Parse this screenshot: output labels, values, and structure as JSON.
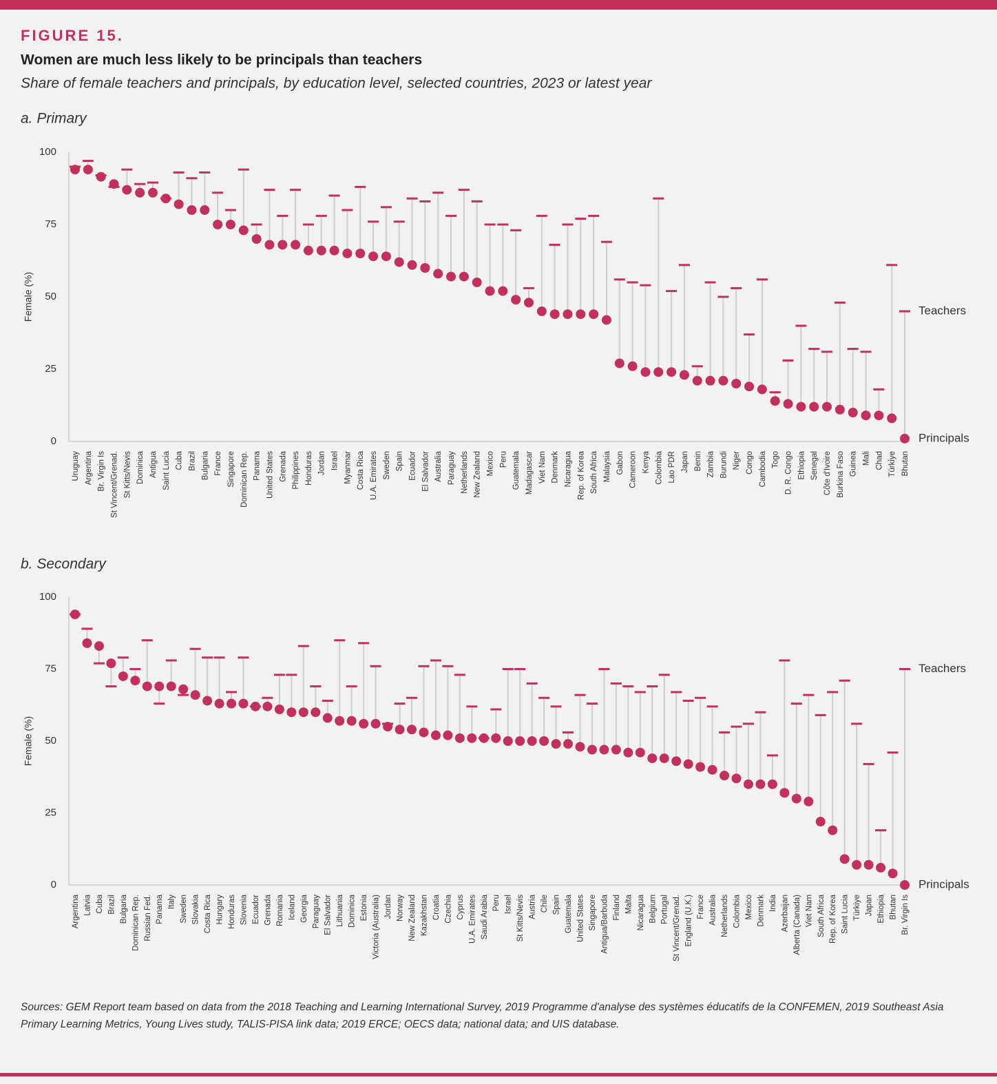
{
  "header": {
    "figure": "FIGURE 15.",
    "title": "Women are much less likely to be principals than teachers",
    "subtitle": "Share of female teachers and principals, by education level, selected countries, 2023 or latest year"
  },
  "source": "Sources: GEM Report team based on data from the 2018 Teaching and Learning International Survey, 2019 Programme d'analyse des systèmes éducatifs de la CONFEMEN, 2019 Southeast Asia Primary Learning Metrics, Young Lives study, TALIS-PISA link data; 2019 ERCE; OECS data; national data; and UIS database.",
  "chart_data": [
    {
      "type": "dumbbell",
      "title": "a. Primary",
      "ylabel": "Female (%)",
      "ylim": [
        0,
        100
      ],
      "yticks": [
        0,
        25,
        50,
        75,
        100
      ],
      "grid": false,
      "stem_color": "#cfcfcf",
      "categories": [
        "Uruguay",
        "Argentina",
        "Br. Virgin Is",
        "St Vincent/Grenad.",
        "St Kitts/Nevis",
        "Dominica",
        "Antigua",
        "Saint Lucia",
        "Cuba",
        "Brazil",
        "Bulgaria",
        "France",
        "Singapore",
        "Dominican Rep.",
        "Panama",
        "United States",
        "Grenada",
        "Philippines",
        "Honduras",
        "Jordan",
        "Israel",
        "Myanmar",
        "Costa Rica",
        "U.A. Emirates",
        "Sweden",
        "Spain",
        "Ecuador",
        "El Salvador",
        "Australia",
        "Paraguay",
        "Netherlands",
        "New Zealand",
        "Mexico",
        "Peru",
        "Guatemala",
        "Madagascar",
        "Viet Nam",
        "Denmark",
        "Nicaragua",
        "Rep. of Korea",
        "South Africa",
        "Malaysia",
        "Gabon",
        "Cameroon",
        "Kenya",
        "Colombia",
        "Lao PDR",
        "Japan",
        "Benin",
        "Zambia",
        "Burundi",
        "Niger",
        "Congo",
        "Cambodia",
        "Togo",
        "D. R. Congo",
        "Ethiopia",
        "Senegal",
        "Côte d'Ivoire",
        "Burkina Faso",
        "Guinea",
        "Mali",
        "Chad",
        "Türkiye",
        "Bhutan"
      ],
      "series": [
        {
          "name": "Teachers",
          "color": "#c2305c",
          "marker": "dash",
          "values": [
            95,
            97,
            92,
            88,
            94,
            89,
            89.5,
            84,
            93,
            91,
            93,
            86,
            80,
            94,
            75,
            87,
            78,
            87,
            75,
            78,
            85,
            80,
            88,
            76,
            81,
            76,
            84,
            83,
            86,
            78,
            87,
            83,
            75,
            75,
            73,
            53,
            78,
            68,
            75,
            77,
            78,
            69,
            56,
            55,
            54,
            84,
            52,
            61,
            26,
            55,
            50,
            53,
            37,
            56,
            17,
            28,
            40,
            32,
            31,
            48,
            32,
            31,
            18,
            61,
            45
          ]
        },
        {
          "name": "Principals",
          "color": "#c2305c",
          "marker": "dot",
          "values": [
            94,
            94,
            91.5,
            89,
            87,
            86,
            86,
            84,
            82,
            80,
            80,
            75,
            75,
            73,
            70,
            68,
            68,
            68,
            66,
            66,
            66,
            65,
            65,
            64,
            64,
            62,
            61,
            60,
            58,
            57,
            57,
            55,
            52,
            52,
            49,
            48,
            45,
            44,
            44,
            44,
            44,
            42,
            27,
            26,
            24,
            24,
            24,
            23,
            21,
            21,
            21,
            20,
            19,
            18,
            14,
            13,
            12,
            12,
            12,
            11,
            10,
            9,
            9,
            8,
            1
          ]
        }
      ]
    },
    {
      "type": "dumbbell",
      "title": "b. Secondary",
      "ylabel": "Female (%)",
      "ylim": [
        0,
        100
      ],
      "yticks": [
        0,
        25,
        50,
        75,
        100
      ],
      "grid": false,
      "stem_color": "#cfcfcf",
      "categories": [
        "Argentina",
        "Latvia",
        "Cuba",
        "Brazil",
        "Bulgaria",
        "Dominican Rep.",
        "Russian Fed.",
        "Panama",
        "Italy",
        "Sweden",
        "Slovakia",
        "Costa Rica",
        "Hungary",
        "Honduras",
        "Slovenia",
        "Ecuador",
        "Grenada",
        "Romania",
        "Iceland",
        "Georgia",
        "Paraguay",
        "El Salvador",
        "Lithuania",
        "Dominica",
        "Estonia",
        "Victoria (Australia)",
        "Jordan",
        "Norway",
        "New Zealand",
        "Kazakhstan",
        "Croatia",
        "Czechia",
        "Cyprus",
        "U.A. Emirates",
        "Saudi Arabia",
        "Peru",
        "Israel",
        "St Kitts/Nevis",
        "Austria",
        "Chile",
        "Spain",
        "Guatemala",
        "United States",
        "Singapore",
        "Antigua/Barbuda",
        "Finland",
        "Malta",
        "Nicaragua",
        "Belgium",
        "Portugal",
        "St Vincent/Grenad.",
        "England (U.K.)",
        "France",
        "Australia",
        "Netherlands",
        "Colombia",
        "Mexico",
        "Denmark",
        "India",
        "Azerbaijan",
        "Alberta (Canada)",
        "Viet Nam",
        "South Africa",
        "Rep. of Korea",
        "Saint Lucia",
        "Türkiye",
        "Japan",
        "Ethiopia",
        "Bhutan",
        "Br. Virgin Is"
      ],
      "series": [
        {
          "name": "Teachers",
          "color": "#c2305c",
          "marker": "dash",
          "values": [
            94,
            89,
            77,
            69,
            79,
            75,
            85,
            63,
            78,
            66,
            82,
            79,
            79,
            67,
            79,
            62,
            65,
            73,
            73,
            83,
            69,
            64,
            85,
            69,
            84,
            76,
            56,
            63,
            65,
            76,
            78,
            76,
            73,
            62,
            51,
            61,
            75,
            75,
            70,
            65,
            62,
            53,
            66,
            63,
            75,
            70,
            69,
            67,
            69,
            73,
            67,
            64,
            65,
            62,
            53,
            55,
            56,
            60,
            45,
            78,
            63,
            66,
            59,
            67,
            71,
            56,
            42,
            19,
            46,
            75
          ]
        },
        {
          "name": "Principals",
          "color": "#c2305c",
          "marker": "dot",
          "values": [
            94,
            84,
            83,
            77,
            72.5,
            71,
            69,
            69,
            69,
            68,
            66,
            64,
            63,
            63,
            63,
            62,
            62,
            61,
            60,
            60,
            60,
            58,
            57,
            57,
            56,
            56,
            55,
            54,
            54,
            53,
            52,
            52,
            51,
            51,
            51,
            51,
            50,
            50,
            50,
            50,
            49,
            49,
            48,
            47,
            47,
            47,
            46,
            46,
            44,
            44,
            43,
            42,
            41,
            40,
            38,
            37,
            35,
            35,
            35,
            32,
            30,
            29,
            22,
            19,
            9,
            7,
            7,
            6,
            4,
            0
          ]
        }
      ]
    }
  ]
}
